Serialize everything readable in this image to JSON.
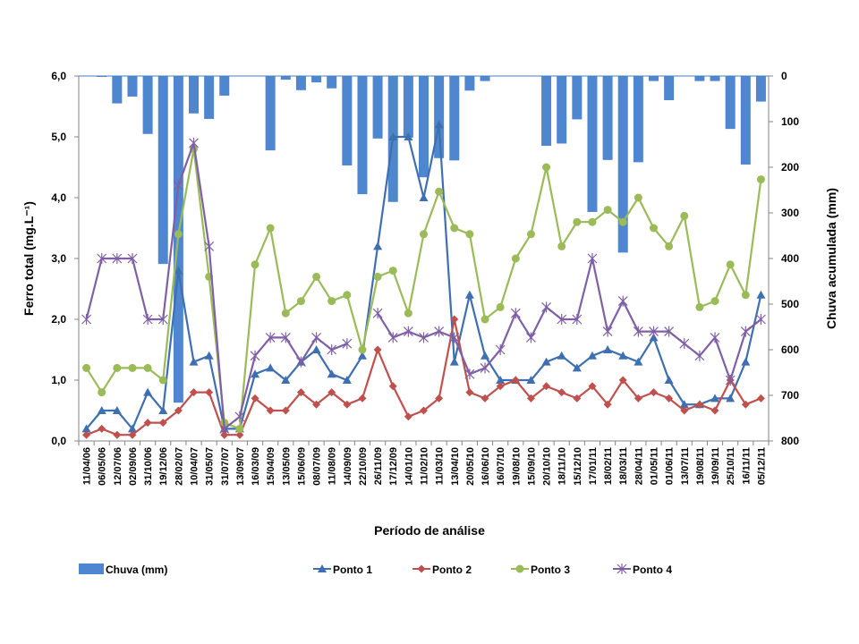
{
  "chart_data": {
    "type": "bar+line",
    "title": "",
    "xlabel": "Período de análise",
    "ylabel": "Ferro total (mg.L⁻¹)",
    "y2label": "Chuva acumulada (mm)",
    "ylim": [
      0,
      6
    ],
    "y2lim": [
      0,
      800
    ],
    "y2_inverted": true,
    "yticks": [
      "0,0",
      "1,0",
      "2,0",
      "3,0",
      "4,0",
      "5,0",
      "6,0"
    ],
    "y2ticks": [
      "0",
      "100",
      "200",
      "300",
      "400",
      "500",
      "600",
      "700",
      "800"
    ],
    "grid": false,
    "legend_position": "bottom",
    "categories": [
      "11/04/06",
      "06/05/06",
      "12/07/06",
      "02/09/06",
      "31/10/06",
      "19/12/06",
      "28/02/07",
      "10/04/07",
      "31/05/07",
      "31/07/07",
      "13/09/07",
      "16/03/09",
      "15/04/09",
      "13/05/09",
      "15/06/09",
      "08/07/09",
      "11/08/09",
      "14/09/09",
      "22/10/09",
      "26/11/09",
      "17/12/09",
      "14/01/10",
      "11/02/10",
      "11/03/10",
      "13/04/10",
      "20/05/10",
      "16/06/10",
      "16/07/10",
      "19/08/10",
      "15/09/10",
      "20/10/10",
      "18/11/10",
      "15/12/10",
      "17/01/11",
      "18/02/11",
      "18/03/11",
      "28/04/11",
      "01/05/11",
      "01/06/11",
      "13/07/11",
      "19/08/11",
      "19/09/11",
      "25/10/11",
      "16/11/11",
      "05/12/11"
    ],
    "series": [
      {
        "name": "Chuva (mm)",
        "type": "bar",
        "axis": "right",
        "color": "#4f86d0",
        "values": [
          0,
          2,
          60,
          45,
          127,
          412,
          716,
          82,
          94,
          43,
          0,
          0,
          163,
          8,
          31,
          14,
          27,
          196,
          259,
          137,
          276,
          135,
          222,
          180,
          185,
          32,
          11,
          0,
          0,
          0,
          153,
          148,
          95,
          298,
          184,
          387,
          189,
          11,
          53,
          0,
          11,
          11,
          116,
          194,
          56
        ]
      },
      {
        "name": "Ponto 1",
        "type": "line",
        "axis": "left",
        "color": "#3e6fb0",
        "marker": "triangle",
        "values": [
          0.2,
          0.5,
          0.5,
          0.2,
          0.8,
          0.5,
          2.8,
          1.3,
          1.4,
          0.2,
          0.2,
          1.1,
          1.2,
          1.0,
          1.3,
          1.5,
          1.1,
          1.0,
          1.4,
          3.2,
          5.0,
          5.0,
          4.0,
          5.2,
          1.3,
          2.4,
          1.4,
          1.0,
          1.0,
          1.0,
          1.3,
          1.4,
          1.2,
          1.4,
          1.5,
          1.4,
          1.3,
          1.7,
          1.0,
          0.6,
          0.6,
          0.7,
          0.7,
          1.3,
          2.4
        ]
      },
      {
        "name": "Ponto 2",
        "type": "line",
        "axis": "left",
        "color": "#c0504d",
        "marker": "diamond",
        "values": [
          0.1,
          0.2,
          0.1,
          0.1,
          0.3,
          0.3,
          0.5,
          0.8,
          0.8,
          0.1,
          0.1,
          0.7,
          0.5,
          0.5,
          0.8,
          0.6,
          0.8,
          0.6,
          0.7,
          1.5,
          0.9,
          0.4,
          0.5,
          0.7,
          2.0,
          0.8,
          0.7,
          0.9,
          1.0,
          0.7,
          0.9,
          0.8,
          0.7,
          0.9,
          0.6,
          1.0,
          0.7,
          0.8,
          0.7,
          0.5,
          0.6,
          0.5,
          1.0,
          0.6,
          0.7
        ]
      },
      {
        "name": "Ponto 3",
        "type": "line",
        "axis": "left",
        "color": "#9bbb59",
        "marker": "circle",
        "values": [
          1.2,
          0.8,
          1.2,
          1.2,
          1.2,
          1.0,
          3.4,
          4.8,
          2.7,
          0.3,
          0.2,
          2.9,
          3.5,
          2.1,
          2.3,
          2.7,
          2.3,
          2.4,
          1.5,
          2.7,
          2.8,
          2.1,
          3.4,
          4.1,
          3.5,
          3.4,
          2.0,
          2.2,
          3.0,
          3.4,
          4.5,
          3.2,
          3.6,
          3.6,
          3.8,
          3.6,
          4.0,
          3.5,
          3.2,
          3.7,
          2.2,
          2.3,
          2.9,
          2.4,
          4.3
        ]
      },
      {
        "name": "Ponto 4",
        "type": "line",
        "axis": "left",
        "color": "#7f5fa6",
        "marker": "star",
        "values": [
          2.0,
          3.0,
          3.0,
          3.0,
          2.0,
          2.0,
          4.2,
          4.9,
          3.2,
          0.2,
          0.4,
          1.4,
          1.7,
          1.7,
          1.3,
          1.7,
          1.5,
          1.6,
          null,
          2.1,
          1.7,
          1.8,
          1.7,
          1.8,
          1.7,
          1.1,
          1.2,
          1.5,
          2.1,
          1.7,
          2.2,
          2.0,
          2.0,
          3.0,
          1.8,
          2.3,
          1.8,
          1.8,
          1.8,
          1.6,
          1.4,
          1.7,
          1.0,
          1.8,
          2.0
        ]
      }
    ]
  }
}
